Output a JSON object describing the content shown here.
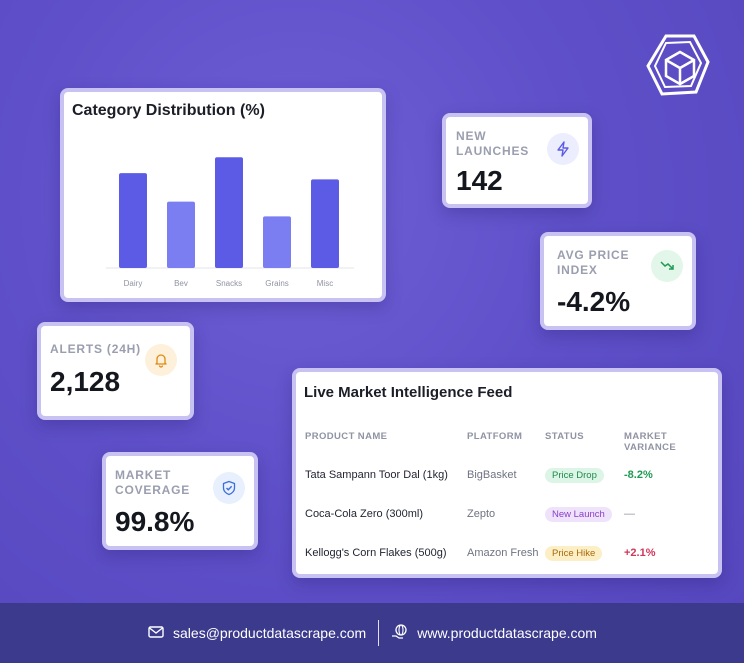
{
  "chart_card": {
    "title": "Category Distribution (%)"
  },
  "chart_data": {
    "type": "bar",
    "title": "Category Distribution (%)",
    "categories": [
      "Dairy",
      "Bev",
      "Snacks",
      "Grains",
      "Misc"
    ],
    "values": [
      90,
      63,
      105,
      49,
      84
    ],
    "ylim": [
      0,
      110
    ],
    "grid": false,
    "colors": [
      "#5b5be6",
      "#7b7ef0",
      "#5b5be6",
      "#7b7ef0",
      "#5b5be6"
    ]
  },
  "new_launches": {
    "label_line1": "NEW",
    "label_line2": "LAUNCHES",
    "value": "142",
    "icon": "lightning-icon"
  },
  "avg_price": {
    "label_line1": "AVG PRICE",
    "label_line2": "INDEX",
    "value": "-4.2%",
    "icon": "trending-down-icon"
  },
  "alerts": {
    "label": "ALERTS (24H)",
    "value": "2,128",
    "icon": "bell-icon"
  },
  "coverage": {
    "label_line1": "MARKET",
    "label_line2": "COVERAGE",
    "value": "99.8%",
    "icon": "shield-check-icon"
  },
  "feed": {
    "title": "Live Market Intelligence Feed",
    "columns": [
      "PRODUCT NAME",
      "PLATFORM",
      "STATUS",
      "MARKET VARIANCE"
    ],
    "rows": [
      {
        "product": "Tata Sampann Toor Dal (1kg)",
        "platform": "BigBasket",
        "status": "Price Drop",
        "variance": "-8.2%"
      },
      {
        "product": "Coca-Cola Zero (300ml)",
        "platform": "Zepto",
        "status": "New Launch",
        "variance": "—"
      },
      {
        "product": "Kellogg's Corn Flakes (500g)",
        "platform": "Amazon Fresh",
        "status": "Price Hike",
        "variance": "+2.1%"
      }
    ]
  },
  "colors": {
    "accent": "#5b5be6",
    "price_drop_bg": "#dcf5e6",
    "price_drop_text": "#1f8a4c",
    "new_launch_bg": "#efe3fb",
    "new_launch_text": "#8a3fc7",
    "price_hike_bg": "#fcefc6",
    "price_hike_text": "#a86a0c",
    "negative": "#1f9a55",
    "positive": "#d1365a"
  },
  "footer": {
    "email": "sales@productdatascrape.com",
    "website": "www.productdatascrape.com",
    "email_icon": "mail-icon",
    "web_icon": "globe-hand-icon"
  },
  "logo": {
    "icon": "cube-logo-icon"
  }
}
